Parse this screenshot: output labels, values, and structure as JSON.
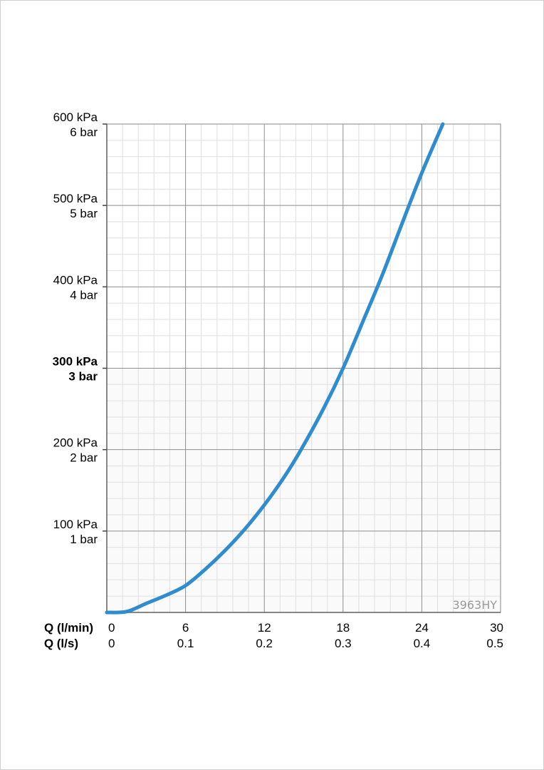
{
  "chart_data": {
    "type": "line",
    "x_label_primary": "Q (l/min)",
    "x_label_secondary": "Q (l/s)",
    "x_ticks_primary": [
      "0",
      "6",
      "12",
      "18",
      "24",
      "30"
    ],
    "x_ticks_secondary": [
      "0",
      "0.1",
      "0.2",
      "0.3",
      "0.4",
      "0.5"
    ],
    "xlim": [
      0,
      30
    ],
    "ylim": [
      0,
      600
    ],
    "y_ticks": [
      {
        "kpa": "600 kPa",
        "bar": "6 bar",
        "value": 600,
        "bold": false
      },
      {
        "kpa": "500 kPa",
        "bar": "5 bar",
        "value": 500,
        "bold": false
      },
      {
        "kpa": "400 kPa",
        "bar": "4 bar",
        "value": 400,
        "bold": false
      },
      {
        "kpa": "300 kPa",
        "bar": "3 bar",
        "value": 300,
        "bold": true
      },
      {
        "kpa": "200 kPa",
        "bar": "2 bar",
        "value": 200,
        "bold": false
      },
      {
        "kpa": "100 kPa",
        "bar": "1 bar",
        "value": 100,
        "bold": false
      }
    ],
    "grid": true,
    "watermark": "3963HY",
    "series": [
      {
        "color": "#2f8ccf",
        "x": [
          0,
          1.5,
          3,
          4.5,
          6,
          7.5,
          9,
          10.5,
          12,
          13.5,
          14.8,
          16.5,
          18,
          19.5,
          21,
          22.5,
          24,
          25.6
        ],
        "y": [
          0,
          1,
          11,
          21,
          33,
          53,
          76,
          102,
          132,
          166,
          200,
          250,
          300,
          357,
          415,
          478,
          540,
          600
        ]
      }
    ]
  }
}
